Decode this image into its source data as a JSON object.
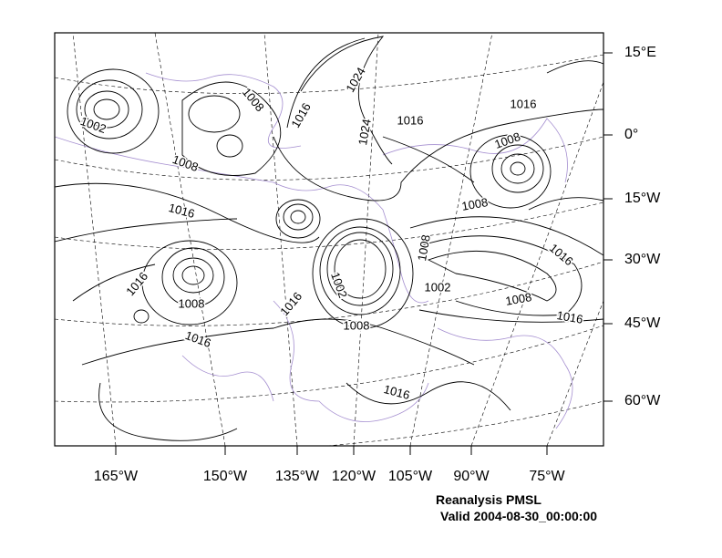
{
  "map": {
    "right_labels": [
      "15°E",
      "0°",
      "15°W",
      "30°W",
      "45°W",
      "60°W"
    ],
    "bottom_labels": [
      "165°W",
      "150°W",
      "135°W",
      "120°W",
      "105°W",
      "90°W",
      "75°W"
    ],
    "contour_labels": [
      "1008",
      "1024",
      "1016",
      "1002",
      "1024",
      "1016",
      "1016",
      "1008",
      "1008",
      "1016",
      "1008",
      "1008",
      "1016",
      "1016",
      "1002",
      "1002",
      "1008",
      "1008",
      "1016",
      "1016",
      "1008",
      "1016",
      "1016"
    ],
    "caption": {
      "title": "Reanalysis PMSL",
      "valid": "Valid 2004-08-30_00:00:00"
    }
  }
}
